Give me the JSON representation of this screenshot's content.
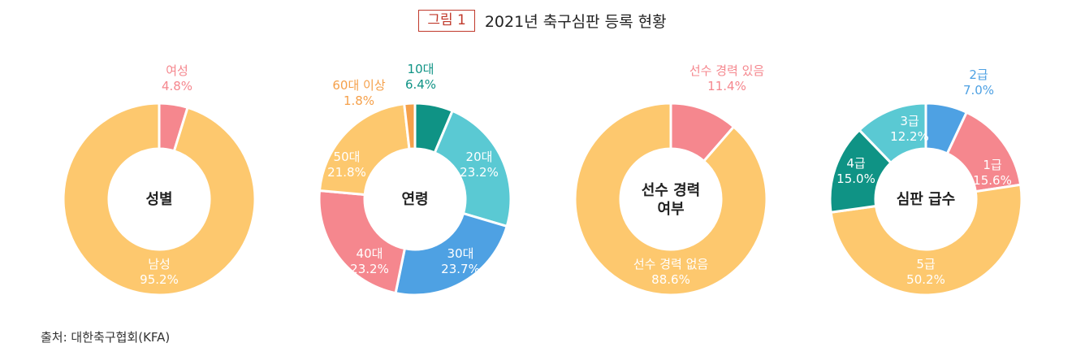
{
  "figure": {
    "badge": "그림 1",
    "title": "2021년 축구심판 등록 현황",
    "source": "출처: 대한축구협회(KFA)"
  },
  "colors": {
    "yellow": "#fdc86e",
    "pink": "#f5878e",
    "orange": "#f5a04a",
    "teal_dark": "#0f9385",
    "teal_light": "#5ac9d3",
    "blue": "#4ea1e3"
  },
  "chart_data": [
    {
      "type": "pie",
      "variant": "donut",
      "center_label": [
        "성별"
      ],
      "slices": [
        {
          "name": "여성",
          "value": 4.8,
          "display": "4.8%",
          "color": "#f5878e",
          "label_outside": true
        },
        {
          "name": "남성",
          "value": 95.2,
          "display": "95.2%",
          "color": "#fdc86e",
          "label_outside": false
        }
      ]
    },
    {
      "type": "pie",
      "variant": "donut",
      "center_label": [
        "연령"
      ],
      "slices": [
        {
          "name": "10대",
          "value": 6.4,
          "display": "6.4%",
          "color": "#0f9385",
          "label_outside": true
        },
        {
          "name": "20대",
          "value": 23.2,
          "display": "23.2%",
          "color": "#5ac9d3",
          "label_outside": false
        },
        {
          "name": "30대",
          "value": 23.7,
          "display": "23.7%",
          "color": "#4ea1e3",
          "label_outside": false
        },
        {
          "name": "40대",
          "value": 23.2,
          "display": "23.2%",
          "color": "#f5878e",
          "label_outside": false
        },
        {
          "name": "50대",
          "value": 21.8,
          "display": "21.8%",
          "color": "#fdc86e",
          "label_outside": false
        },
        {
          "name": "60대 이상",
          "value": 1.8,
          "display": "1.8%",
          "color": "#f5a04a",
          "label_outside": true
        }
      ]
    },
    {
      "type": "pie",
      "variant": "donut",
      "center_label": [
        "선수 경력",
        "여부"
      ],
      "slices": [
        {
          "name": "선수 경력 있음",
          "value": 11.4,
          "display": "11.4%",
          "color": "#f5878e",
          "label_outside": true
        },
        {
          "name": "선수 경력 없음",
          "value": 88.6,
          "display": "88.6%",
          "color": "#fdc86e",
          "label_outside": false
        }
      ]
    },
    {
      "type": "pie",
      "variant": "donut",
      "center_label": [
        "심판 급수"
      ],
      "slices": [
        {
          "name": "2급",
          "value": 7.0,
          "display": "7.0%",
          "color": "#4ea1e3",
          "label_outside": true
        },
        {
          "name": "1급",
          "value": 15.6,
          "display": "15.6%",
          "color": "#f5878e",
          "label_outside": false
        },
        {
          "name": "5급",
          "value": 50.2,
          "display": "50.2%",
          "color": "#fdc86e",
          "label_outside": false
        },
        {
          "name": "4급",
          "value": 15.0,
          "display": "15.0%",
          "color": "#0f9385",
          "label_outside": false
        },
        {
          "name": "3급",
          "value": 12.2,
          "display": "12.2%",
          "color": "#5ac9d3",
          "label_outside": false
        }
      ]
    }
  ]
}
